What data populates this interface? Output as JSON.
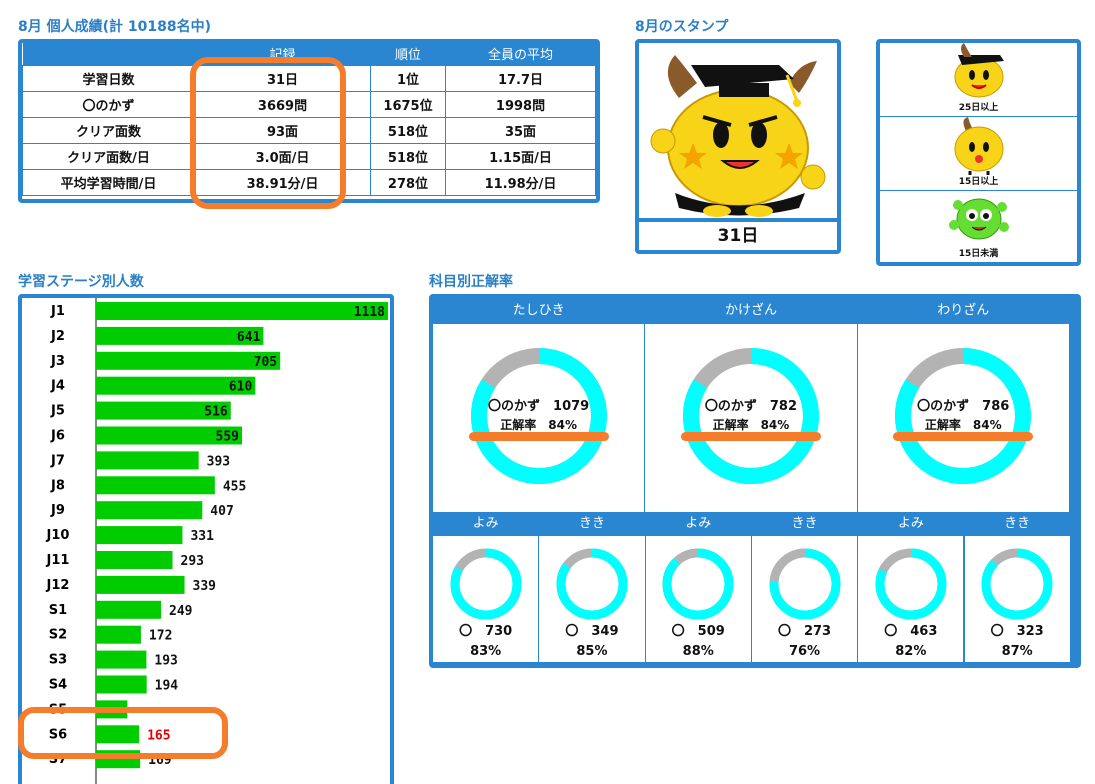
{
  "personal": {
    "title": "8月 個人成績(計 10188名中)",
    "headers": [
      "",
      "記録",
      "順位",
      "全員の平均"
    ],
    "rows": [
      {
        "label": "学習日数",
        "record": "31日",
        "rank": "1位",
        "avg": "17.7日"
      },
      {
        "label": "〇のかず",
        "record": "3669問",
        "rank": "1675位",
        "avg": "1998問"
      },
      {
        "label": "クリア面数",
        "record": "93面",
        "rank": "518位",
        "avg": "35面"
      },
      {
        "label": "クリア面数/日",
        "record": "3.0面/日",
        "rank": "518位",
        "avg": "1.15面/日"
      },
      {
        "label": "平均学習時間/日",
        "record": "38.91分/日",
        "rank": "278位",
        "avg": "11.98分/日"
      }
    ]
  },
  "stamp": {
    "title": "8月のスタンプ",
    "days": "31日",
    "legend": [
      "25日以上",
      "15日以上",
      "15日未満"
    ]
  },
  "stage": {
    "title": "学習ステージ別人数"
  },
  "chart_data": [
    {
      "type": "bar",
      "categories": [
        "J1",
        "J2",
        "J3",
        "J4",
        "J5",
        "J6",
        "J7",
        "J8",
        "J9",
        "J10",
        "J11",
        "J12",
        "S1",
        "S2",
        "S3",
        "S4",
        "S5",
        "S6",
        "S7"
      ],
      "values": [
        1118,
        641,
        705,
        610,
        516,
        559,
        393,
        455,
        407,
        331,
        293,
        339,
        249,
        172,
        193,
        194,
        120,
        165,
        169
      ],
      "value_labels": [
        "1118",
        "641",
        "705",
        "610",
        "516",
        "559",
        "393",
        "455",
        "407",
        "331",
        "293",
        "339",
        "249",
        "172",
        "193",
        "194",
        "",
        "165",
        "169"
      ],
      "highlight_category": "S6",
      "colors": {
        "bar": "#00cc00",
        "highlight_label": "#e60000"
      }
    },
    {
      "type": "pie",
      "title": "科目別正解率",
      "big": [
        {
          "name": "たしひき",
          "count_label": "〇のかず",
          "count": "1079",
          "rate_label": "正解率",
          "rate_text": "84%",
          "rate": 0.84
        },
        {
          "name": "かけざん",
          "count_label": "〇のかず",
          "count": "782",
          "rate_label": "正解率",
          "rate_text": "84%",
          "rate": 0.84
        },
        {
          "name": "わりざん",
          "count_label": "〇のかず",
          "count": "786",
          "rate_label": "正解率",
          "rate_text": "84%",
          "rate": 0.84
        }
      ],
      "small": [
        {
          "name": "よみ",
          "mark": "〇",
          "count": "730",
          "rate_text": "83%",
          "rate": 0.83
        },
        {
          "name": "きき",
          "mark": "〇",
          "count": "349",
          "rate_text": "85%",
          "rate": 0.85
        },
        {
          "name": "よみ",
          "mark": "〇",
          "count": "509",
          "rate_text": "88%",
          "rate": 0.88
        },
        {
          "name": "きき",
          "mark": "〇",
          "count": "273",
          "rate_text": "76%",
          "rate": 0.76
        },
        {
          "name": "よみ",
          "mark": "〇",
          "count": "463",
          "rate_text": "82%",
          "rate": 0.82
        },
        {
          "name": "きき",
          "mark": "〇",
          "count": "323",
          "rate_text": "87%",
          "rate": 0.87
        }
      ],
      "colors": {
        "correct": "#00ffff",
        "wrong": "#b3b3b3",
        "header": "#2a86d0",
        "accent": "#f47c2a"
      }
    }
  ],
  "colors": {
    "brand": "#2a86d0",
    "title": "#2a7fc6",
    "highlight": "#f47c2a"
  }
}
